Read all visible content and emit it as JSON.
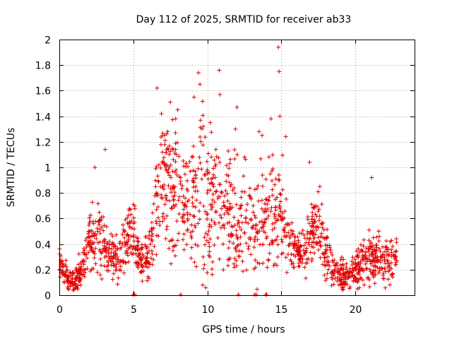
{
  "chart_data": {
    "type": "scatter",
    "title": "Day 112 of 2025, SRMTID for receiver ab33",
    "xlabel": "GPS time / hours",
    "ylabel": "SRMTID / TECUs",
    "xlim": [
      0,
      24
    ],
    "ylim": [
      0,
      2
    ],
    "x_ticks": [
      "0",
      "5",
      "10",
      "15",
      "20"
    ],
    "y_ticks": [
      "0",
      "0.2",
      "0.4",
      "0.6",
      "0.8",
      "1",
      "1.2",
      "1.4",
      "1.6",
      "1.8",
      "2"
    ],
    "grid": true,
    "marker": "plus",
    "series_color": "#e00000",
    "profile": {
      "hours": [
        0,
        0.3,
        0.6,
        1.0,
        1.5,
        2.0,
        2.5,
        3.0,
        3.5,
        4.0,
        4.5,
        5.0,
        5.5,
        6.0,
        6.5,
        7.0,
        7.5,
        8.0,
        8.5,
        9.0,
        9.5,
        10.0,
        10.5,
        11.0,
        11.5,
        12.0,
        12.5,
        13.0,
        13.5,
        14.0,
        14.5,
        15.0,
        15.5,
        16.0,
        16.5,
        17.0,
        17.5,
        18.0,
        18.5,
        19.0,
        19.5,
        20.0,
        20.5,
        21.0,
        21.5,
        22.0,
        22.5,
        22.8
      ],
      "median": [
        0.25,
        0.22,
        0.12,
        0.12,
        0.2,
        0.45,
        0.5,
        0.4,
        0.3,
        0.3,
        0.45,
        0.5,
        0.25,
        0.3,
        0.6,
        0.95,
        0.9,
        0.75,
        0.7,
        0.65,
        0.85,
        0.65,
        0.85,
        0.6,
        0.65,
        0.55,
        0.6,
        0.5,
        0.6,
        0.55,
        0.65,
        0.7,
        0.4,
        0.35,
        0.35,
        0.45,
        0.55,
        0.35,
        0.2,
        0.15,
        0.18,
        0.2,
        0.25,
        0.3,
        0.3,
        0.25,
        0.25,
        0.35
      ],
      "spread": [
        0.1,
        0.1,
        0.06,
        0.08,
        0.1,
        0.2,
        0.25,
        0.2,
        0.12,
        0.15,
        0.18,
        0.2,
        0.1,
        0.15,
        0.35,
        0.4,
        0.45,
        0.4,
        0.35,
        0.45,
        0.5,
        0.45,
        0.45,
        0.35,
        0.4,
        0.35,
        0.35,
        0.3,
        0.35,
        0.35,
        0.35,
        0.35,
        0.15,
        0.15,
        0.15,
        0.2,
        0.25,
        0.2,
        0.12,
        0.1,
        0.1,
        0.12,
        0.15,
        0.18,
        0.15,
        0.15,
        0.12,
        0.15
      ],
      "sample_count": 1600
    },
    "peaks": [
      {
        "x": 9.4,
        "y": 1.74
      },
      {
        "x": 9.5,
        "y": 1.65
      },
      {
        "x": 10.8,
        "y": 1.76
      },
      {
        "x": 10.85,
        "y": 1.57
      },
      {
        "x": 14.8,
        "y": 1.94
      },
      {
        "x": 14.85,
        "y": 1.75
      },
      {
        "x": 14.9,
        "y": 1.4
      },
      {
        "x": 6.6,
        "y": 1.62
      },
      {
        "x": 7.5,
        "y": 1.51
      },
      {
        "x": 8.0,
        "y": 1.45
      },
      {
        "x": 12.0,
        "y": 1.47
      },
      {
        "x": 11.9,
        "y": 1.3
      },
      {
        "x": 13.5,
        "y": 1.28
      },
      {
        "x": 13.7,
        "y": 1.25
      },
      {
        "x": 14.3,
        "y": 1.38
      },
      {
        "x": 15.3,
        "y": 1.24
      },
      {
        "x": 3.1,
        "y": 1.14
      },
      {
        "x": 2.4,
        "y": 1.0
      },
      {
        "x": 16.9,
        "y": 1.04
      },
      {
        "x": 21.1,
        "y": 0.92
      },
      {
        "x": 17.6,
        "y": 0.85
      },
      {
        "x": 9.1,
        "y": 1.55
      },
      {
        "x": 6.9,
        "y": 1.42
      },
      {
        "x": 10.2,
        "y": 1.35
      }
    ],
    "zero_points": [
      {
        "x": 5.0,
        "y": 0
      },
      {
        "x": 5.1,
        "y": 0
      },
      {
        "x": 8.2,
        "y": 0
      },
      {
        "x": 12.1,
        "y": 0
      },
      {
        "x": 13.2,
        "y": 0
      },
      {
        "x": 13.3,
        "y": 0
      },
      {
        "x": 13.95,
        "y": 0
      },
      {
        "x": 14.0,
        "y": 0
      }
    ]
  }
}
